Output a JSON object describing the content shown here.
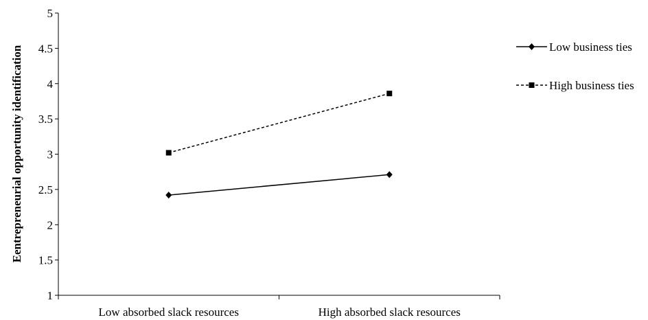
{
  "chart_data": {
    "type": "line",
    "title": "",
    "xlabel": "",
    "ylabel": "Eentrepreneurial opportunity identification",
    "categories": [
      "Low absorbed slack resources",
      "High absorbed slack resources"
    ],
    "ylim": [
      1,
      5
    ],
    "yticks": [
      "1",
      "1.5",
      "2",
      "2.5",
      "3",
      "3.5",
      "4",
      "4.5",
      "5"
    ],
    "grid": false,
    "legend_position": "right",
    "series": [
      {
        "name": "Low business ties",
        "values": [
          2.42,
          2.71
        ],
        "marker": "diamond",
        "line": "solid",
        "color": "#000000"
      },
      {
        "name": "High business ties",
        "values": [
          3.02,
          3.86
        ],
        "marker": "square",
        "line": "dashed",
        "color": "#000000"
      }
    ]
  }
}
